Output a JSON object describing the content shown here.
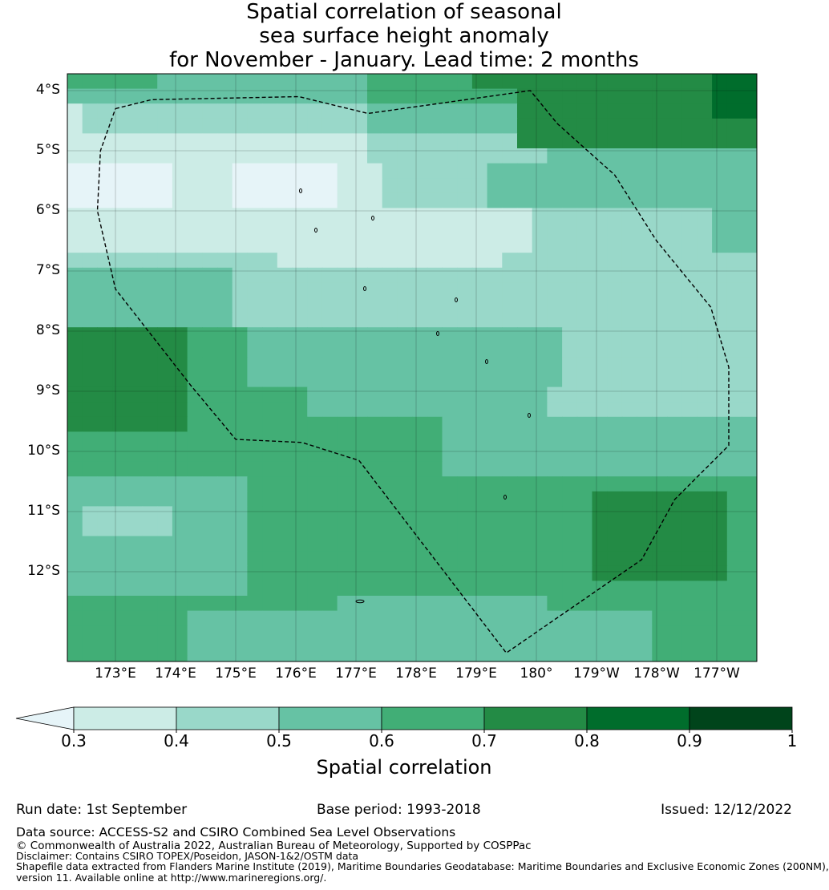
{
  "title": {
    "line1": "Spatial correlation of seasonal",
    "line2": "sea surface height anomaly",
    "line3": "for November - January. Lead time: 2 months"
  },
  "map": {
    "lat_labels": [
      "4°S",
      "5°S",
      "6°S",
      "7°S",
      "8°S",
      "9°S",
      "10°S",
      "11°S",
      "12°S"
    ],
    "lon_labels": [
      "173°E",
      "174°E",
      "175°E",
      "176°E",
      "177°E",
      "178°E",
      "179°E",
      "180°",
      "179°W",
      "178°W",
      "177°W"
    ],
    "lon_range": [
      172.2,
      183.7
    ],
    "lat_range": [
      -13.5,
      -3.75
    ],
    "eez_boundary": [
      [
        173.0,
        -4.3
      ],
      [
        173.6,
        -4.15
      ],
      [
        176.05,
        -4.1
      ],
      [
        177.2,
        -4.38
      ],
      [
        179.9,
        -4.0
      ],
      [
        180.35,
        -4.55
      ],
      [
        181.3,
        -5.4
      ],
      [
        182.0,
        -6.5
      ],
      [
        182.9,
        -7.6
      ],
      [
        183.2,
        -8.6
      ],
      [
        183.2,
        -9.9
      ],
      [
        182.3,
        -10.8
      ],
      [
        181.75,
        -11.8
      ],
      [
        179.5,
        -13.35
      ],
      [
        177.05,
        -10.15
      ],
      [
        176.1,
        -9.85
      ],
      [
        175.0,
        -9.8
      ],
      [
        174.25,
        -8.9
      ],
      [
        173.0,
        -7.3
      ],
      [
        172.7,
        -6.0
      ],
      [
        172.75,
        -5.0
      ],
      [
        173.0,
        -4.3
      ]
    ],
    "correlation_grid_description": "gridded correlation field"
  },
  "colorbar": {
    "ticks": [
      "0.3",
      "0.4",
      "0.5",
      "0.6",
      "0.7",
      "0.8",
      "0.9",
      "1"
    ],
    "colors": [
      "#e6f4f8",
      "#ccece6",
      "#99d8c9",
      "#66c2a4",
      "#41ae76",
      "#238b45",
      "#006d2c",
      "#00441b"
    ],
    "label": "Spatial correlation"
  },
  "footer": {
    "run_date": "Run date: 1st September",
    "base_period": "Base period: 1993-2018",
    "issued": "Issued: 12/12/2022",
    "data_source": "Data source: ACCESS-S2 and CSIRO Combined Sea Level Observations",
    "copyright": "© Commonwealth of Australia 2022, Australian Bureau of Meteorology, Supported by COSPPac",
    "disclaimer": "Disclaimer: Contains CSIRO TOPEX/Poseidon, JASON-1&2/OSTM data",
    "shapefile1": "Shapefile data extracted from Flanders Marine Institute (2019), Maritime Boundaries Geodatabase: Maritime Boundaries and Exclusive Economic Zones (200NM),",
    "shapefile2": "version 11. Available online at http://www.marineregions.org/."
  }
}
